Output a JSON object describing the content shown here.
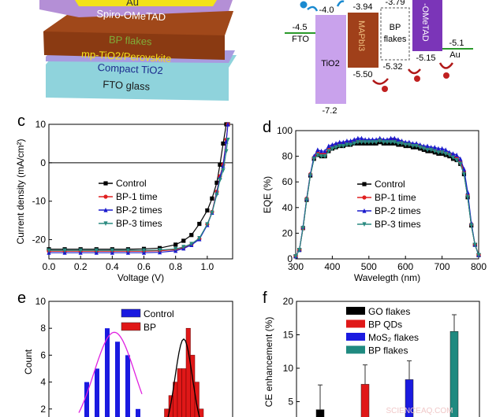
{
  "panel_a": {
    "layers": [
      "Au",
      "Spiro-OMeTAD",
      "BP flakes",
      "mp-TiO2/Perovskite",
      "Compact TiO2",
      "FTO glass"
    ],
    "colors": {
      "au": "#f2e21a",
      "spiro": "#b48fd6",
      "perovskite": "#8a3a12",
      "bp": "#7fae3a",
      "compact": "#a99be0",
      "fto": "#8fd3dc",
      "label_dark": "#1b2a8c"
    }
  },
  "panel_b": {
    "fto": {
      "label": "FTO",
      "value": "-4.5"
    },
    "tio2": {
      "label": "TiO2",
      "top": "-4.0",
      "bottom": "-7.2"
    },
    "mapbi3": {
      "label": "MAPbI3",
      "top": "-3.94",
      "bottom": "-5.50"
    },
    "bp": {
      "label1": "BP",
      "label2": "flakes",
      "top": "-3.79",
      "bottom": "-5.32"
    },
    "spiro": {
      "label": "-OMeTAD",
      "bottom": "-5.15"
    },
    "au": {
      "label": "Au",
      "value": "-5.1"
    }
  },
  "chart_data": [
    {
      "panel": "c",
      "type": "line",
      "xlabel": "Voltage (V)",
      "ylabel": "Current density (mA/cm²)",
      "xlim": [
        0,
        1.16
      ],
      "ylim": [
        -25,
        10
      ],
      "xticks": [
        "0.0",
        "0.2",
        "0.4",
        "0.6",
        "0.8",
        "1.0"
      ],
      "yticks": [
        "10",
        "0",
        "-10",
        "-20"
      ],
      "legend": "center",
      "x": [
        0,
        0.1,
        0.2,
        0.3,
        0.4,
        0.5,
        0.6,
        0.7,
        0.8,
        0.85,
        0.9,
        0.95,
        1.0,
        1.03,
        1.06,
        1.08,
        1.1,
        1.12,
        1.13
      ],
      "series": [
        {
          "name": "Control",
          "color": "#000000",
          "marker": "square",
          "values": [
            -22.5,
            -22.5,
            -22.5,
            -22.5,
            -22.5,
            -22.5,
            -22.4,
            -22.2,
            -21.3,
            -20.3,
            -18.8,
            -15.9,
            -12.4,
            -9.3,
            -5.2,
            -0.5,
            5,
            10,
            10
          ]
        },
        {
          "name": "BP-1 time",
          "color": "#e02020",
          "marker": "circle",
          "values": [
            -23.0,
            -23.0,
            -23.0,
            -23.0,
            -23.0,
            -23.0,
            -23.0,
            -22.9,
            -22.6,
            -22.1,
            -21.3,
            -19.8,
            -16.0,
            -12.8,
            -7.5,
            -3.5,
            -0.5,
            6,
            10
          ]
        },
        {
          "name": "BP-2 times",
          "color": "#1a1acc",
          "marker": "triangle-up",
          "values": [
            -23.4,
            -23.4,
            -23.4,
            -23.4,
            -23.4,
            -23.4,
            -23.4,
            -23.3,
            -22.9,
            -22.3,
            -21.4,
            -19.9,
            -16.2,
            -13.0,
            -7.8,
            -3.8,
            -0.8,
            5.5,
            10
          ]
        },
        {
          "name": "BP-3 times",
          "color": "#2a8a80",
          "marker": "triangle-down",
          "values": [
            -22.8,
            -22.8,
            -22.8,
            -22.8,
            -22.8,
            -22.8,
            -22.8,
            -22.7,
            -22.4,
            -21.9,
            -21.1,
            -19.6,
            -16.0,
            -13.0,
            -8.3,
            -4.5,
            -2.0,
            3,
            6
          ]
        }
      ]
    },
    {
      "panel": "d",
      "type": "line",
      "xlabel": "Wavelegth (nm)",
      "ylabel": "EQE (%)",
      "xlim": [
        300,
        800
      ],
      "ylim": [
        0,
        100
      ],
      "xticks": [
        "300",
        "400",
        "500",
        "600",
        "700",
        "800"
      ],
      "yticks": [
        "0",
        "20",
        "40",
        "60",
        "80",
        "100"
      ],
      "legend": "center",
      "x": [
        300,
        310,
        320,
        330,
        340,
        350,
        360,
        370,
        380,
        390,
        400,
        410,
        420,
        430,
        440,
        450,
        460,
        470,
        480,
        490,
        500,
        510,
        520,
        530,
        540,
        550,
        560,
        570,
        580,
        590,
        600,
        610,
        620,
        630,
        640,
        650,
        660,
        670,
        680,
        690,
        700,
        710,
        720,
        730,
        740,
        750,
        760,
        770,
        780,
        790,
        800
      ],
      "series": [
        {
          "name": "Control",
          "color": "#000000",
          "marker": "square",
          "values": [
            2,
            7,
            24,
            46,
            65,
            78,
            81,
            80,
            80,
            84,
            86,
            87,
            88,
            88,
            89,
            89,
            90,
            90,
            90,
            90,
            90,
            90,
            90,
            91,
            90,
            90,
            90,
            90,
            89,
            89,
            88,
            88,
            87,
            87,
            86,
            85,
            84,
            84,
            83,
            82,
            82,
            81,
            80,
            78,
            77,
            74,
            66,
            48,
            26,
            11,
            3
          ]
        },
        {
          "name": "BP-1 time",
          "color": "#e02020",
          "marker": "circle",
          "values": [
            2,
            7,
            24,
            47,
            66,
            79,
            83,
            82,
            82,
            86,
            88,
            89,
            90,
            90,
            91,
            91,
            92,
            92,
            92,
            92,
            92,
            92,
            92,
            93,
            92,
            92,
            93,
            93,
            92,
            91,
            90,
            90,
            89,
            89,
            88,
            87,
            86,
            86,
            85,
            84,
            84,
            83,
            82,
            81,
            79,
            76,
            68,
            50,
            27,
            11,
            3
          ]
        },
        {
          "name": "BP-2 times",
          "color": "#1a1acc",
          "marker": "triangle-up",
          "values": [
            2,
            7,
            25,
            47,
            66,
            80,
            85,
            84,
            84,
            88,
            89,
            90,
            91,
            91,
            92,
            92,
            93,
            94,
            94,
            93,
            93,
            93,
            93,
            94,
            93,
            93,
            94,
            94,
            93,
            92,
            91,
            91,
            90,
            90,
            89,
            88,
            88,
            87,
            87,
            86,
            86,
            85,
            83,
            82,
            81,
            78,
            70,
            52,
            28,
            11,
            3
          ]
        },
        {
          "name": "BP-3 times",
          "color": "#2a8a80",
          "marker": "triangle-down",
          "values": [
            2,
            7,
            24,
            46,
            65,
            78,
            81,
            80,
            80,
            84,
            86,
            87,
            88,
            88,
            89,
            89,
            90,
            91,
            91,
            91,
            91,
            91,
            91,
            92,
            91,
            91,
            91,
            91,
            90,
            90,
            89,
            89,
            88,
            88,
            87,
            86,
            85,
            85,
            84,
            83,
            83,
            82,
            81,
            79,
            77,
            74,
            66,
            48,
            26,
            11,
            3
          ]
        }
      ]
    },
    {
      "panel": "e",
      "type": "bar",
      "ylabel": "Count",
      "ylim": [
        0,
        10
      ],
      "yticks": [
        "2",
        "4",
        "6",
        "8",
        "10"
      ],
      "legend": "top",
      "series": [
        {
          "name": "Control",
          "color": "#1a1ae0",
          "values": [
            4,
            5,
            8,
            7,
            6,
            2
          ],
          "fit_color": "#e020e0"
        },
        {
          "name": "BP",
          "color": "#e01818",
          "values": [
            1,
            2,
            3,
            4,
            5,
            5,
            8,
            6,
            4,
            2,
            1
          ],
          "fit_color": "#000000"
        }
      ]
    },
    {
      "panel": "f",
      "type": "bar",
      "ylabel": "CE enhancement (%)",
      "ylim": [
        0,
        20
      ],
      "yticks": [
        "5",
        "10",
        "15",
        "20"
      ],
      "legend": "top",
      "categories": [
        "GO flakes",
        "BP QDs",
        "MoS2 flakes",
        "BP flakes"
      ],
      "legend_labels": [
        "GO flakes",
        "BP QDs",
        "MoS₂ flakes",
        "BP flakes"
      ],
      "values": [
        3.8,
        7.6,
        8.3,
        15.5
      ],
      "errors": [
        3.7,
        2.9,
        2.8,
        2.5
      ],
      "colors": [
        "#000000",
        "#e01818",
        "#1a1ae0",
        "#1f8a80"
      ]
    }
  ],
  "panel_labels": [
    "c",
    "d",
    "e",
    "f"
  ],
  "watermark": "SCIENCEAQ.COM"
}
